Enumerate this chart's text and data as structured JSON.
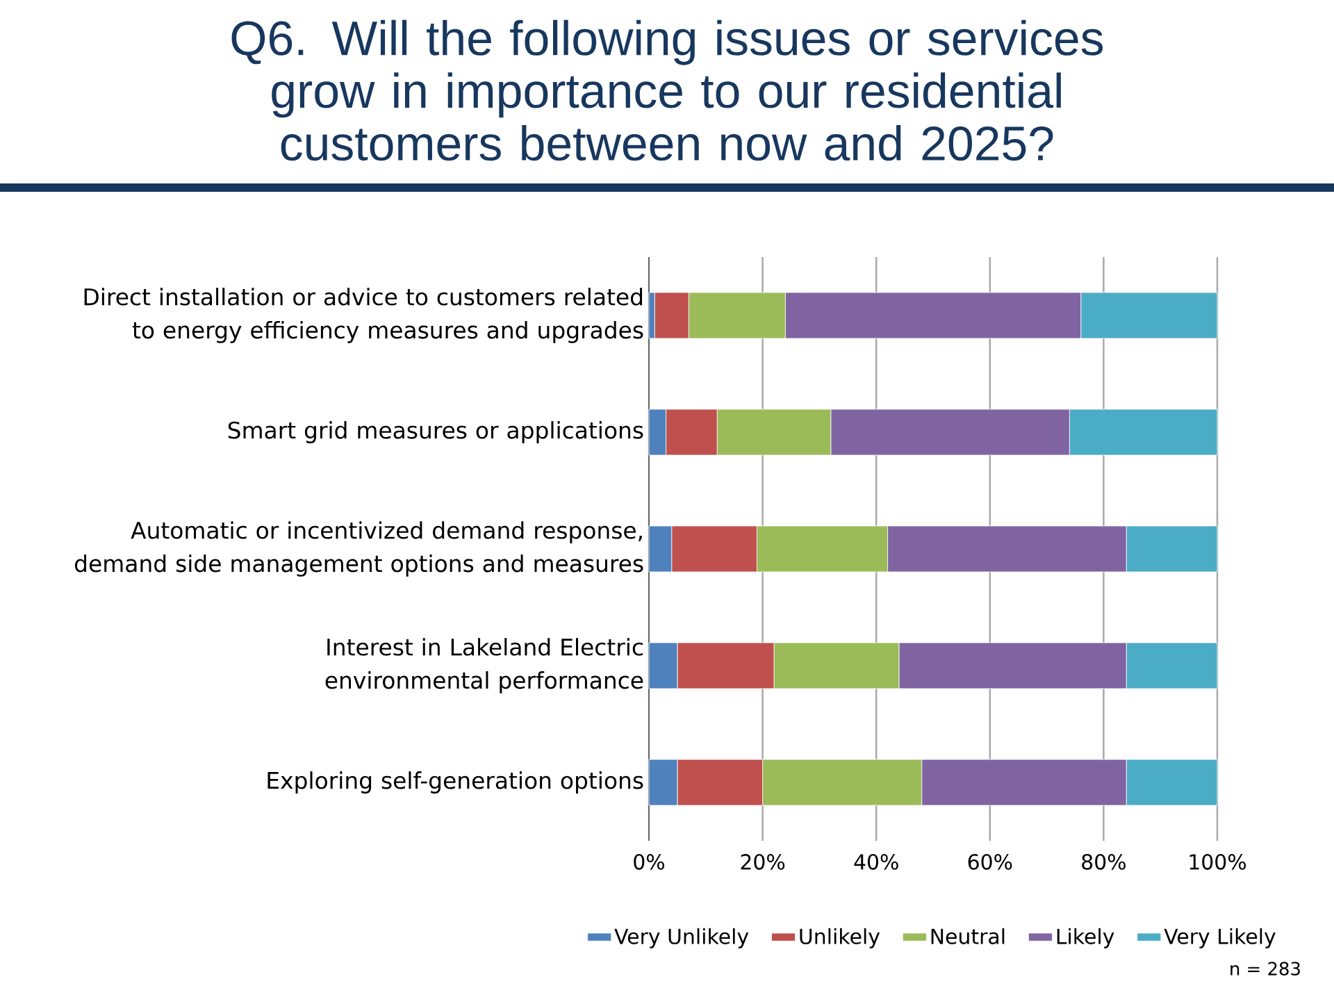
{
  "chart_data": {
    "type": "bar",
    "orientation": "horizontal",
    "stacked": true,
    "title": "Q6. Will the following issues or services grow in importance to our residential customers between now and 2025?",
    "categories": [
      "Direct installation or advice to customers related to energy efficiency measures and upgrades",
      "Smart grid measures or applications",
      "Automatic or incentivized demand response, demand side management options and measures",
      "Interest in Lakeland Electric environmental performance",
      "Exploring self-generation options"
    ],
    "series": [
      {
        "name": "Very Unlikely",
        "color": "#4f81bd",
        "values": [
          1,
          3,
          4,
          5,
          5
        ]
      },
      {
        "name": "Unlikely",
        "color": "#c0504d",
        "values": [
          6,
          9,
          15,
          17,
          15
        ]
      },
      {
        "name": "Neutral",
        "color": "#9bbb59",
        "values": [
          17,
          20,
          23,
          22,
          28
        ]
      },
      {
        "name": "Likely",
        "color": "#8064a2",
        "values": [
          52,
          42,
          42,
          40,
          36
        ]
      },
      {
        "name": "Very Likely",
        "color": "#4bacc6",
        "values": [
          24,
          26,
          16,
          16,
          16
        ]
      }
    ],
    "xlim": [
      0,
      100
    ],
    "xticks": [
      {
        "value": 0,
        "label": "0%"
      },
      {
        "value": 20,
        "label": "20%"
      },
      {
        "value": 40,
        "label": "40%"
      },
      {
        "value": 60,
        "label": "60%"
      },
      {
        "value": 80,
        "label": "80%"
      },
      {
        "value": 100,
        "label": "100%"
      }
    ],
    "grid": "x",
    "legend": "bottom",
    "annotations": [
      "n = 283"
    ]
  }
}
